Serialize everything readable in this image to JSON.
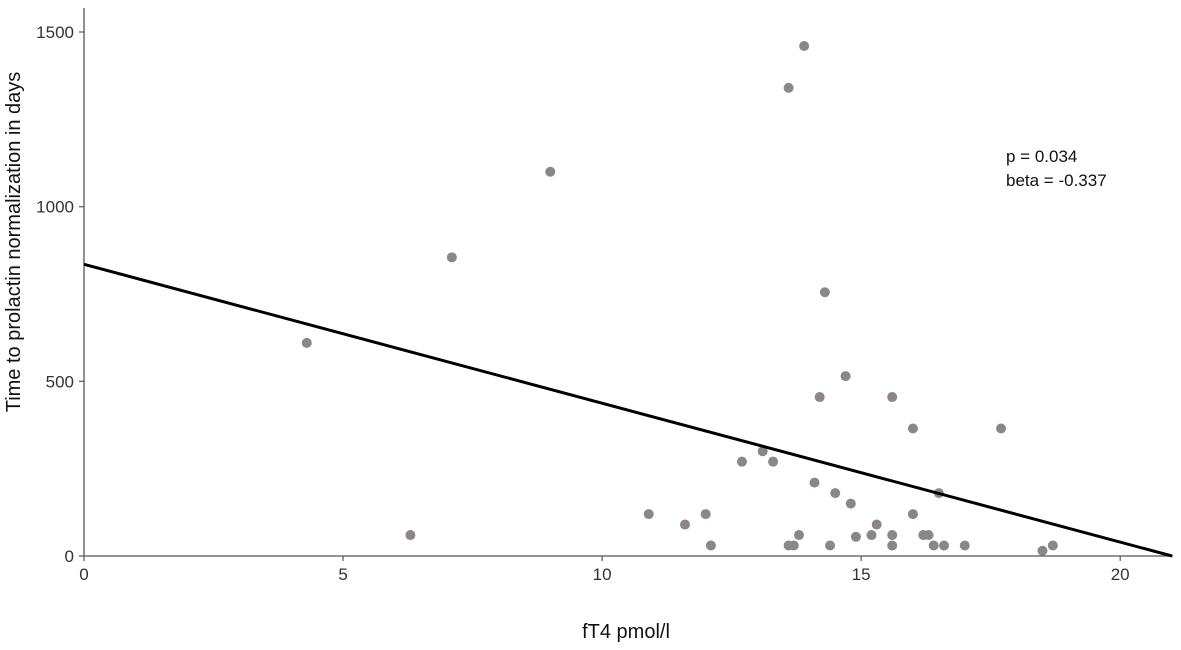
{
  "chart_data": {
    "type": "scatter",
    "title": "",
    "xlabel": "fT4 pmol/l",
    "ylabel": "Time to prolactin normalization in days",
    "xlim": [
      0,
      21
    ],
    "ylim": [
      0,
      1500
    ],
    "xticks": [
      0,
      5,
      10,
      15,
      20
    ],
    "yticks": [
      0,
      500,
      1000,
      1500
    ],
    "grid": false,
    "points": [
      {
        "x": 4.3,
        "y": 610
      },
      {
        "x": 6.3,
        "y": 60
      },
      {
        "x": 7.1,
        "y": 855
      },
      {
        "x": 9.0,
        "y": 1100
      },
      {
        "x": 10.9,
        "y": 120
      },
      {
        "x": 11.6,
        "y": 90
      },
      {
        "x": 12.0,
        "y": 120
      },
      {
        "x": 12.1,
        "y": 30
      },
      {
        "x": 12.7,
        "y": 270
      },
      {
        "x": 13.1,
        "y": 300
      },
      {
        "x": 13.3,
        "y": 270
      },
      {
        "x": 13.6,
        "y": 1340
      },
      {
        "x": 13.6,
        "y": 30
      },
      {
        "x": 13.7,
        "y": 30
      },
      {
        "x": 13.8,
        "y": 60
      },
      {
        "x": 13.9,
        "y": 1460
      },
      {
        "x": 14.1,
        "y": 210
      },
      {
        "x": 14.2,
        "y": 455
      },
      {
        "x": 14.3,
        "y": 755
      },
      {
        "x": 14.4,
        "y": 30
      },
      {
        "x": 14.5,
        "y": 180
      },
      {
        "x": 14.7,
        "y": 515
      },
      {
        "x": 14.8,
        "y": 150
      },
      {
        "x": 14.9,
        "y": 55
      },
      {
        "x": 15.2,
        "y": 60
      },
      {
        "x": 15.3,
        "y": 90
      },
      {
        "x": 15.6,
        "y": 455
      },
      {
        "x": 15.6,
        "y": 60
      },
      {
        "x": 15.6,
        "y": 30
      },
      {
        "x": 16.0,
        "y": 365
      },
      {
        "x": 16.0,
        "y": 120
      },
      {
        "x": 16.2,
        "y": 60
      },
      {
        "x": 16.3,
        "y": 60
      },
      {
        "x": 16.4,
        "y": 30
      },
      {
        "x": 16.5,
        "y": 180
      },
      {
        "x": 16.6,
        "y": 30
      },
      {
        "x": 17.0,
        "y": 30
      },
      {
        "x": 17.7,
        "y": 365
      },
      {
        "x": 18.5,
        "y": 15
      },
      {
        "x": 18.7,
        "y": 30
      }
    ],
    "regression_line": {
      "x": [
        0,
        21
      ],
      "y": [
        835,
        0
      ]
    },
    "annotations": [
      "p = 0.034",
      "beta = -0.337"
    ],
    "marker_color": "#8c8687",
    "line_color": "#000000",
    "axis_color": "#555555"
  }
}
